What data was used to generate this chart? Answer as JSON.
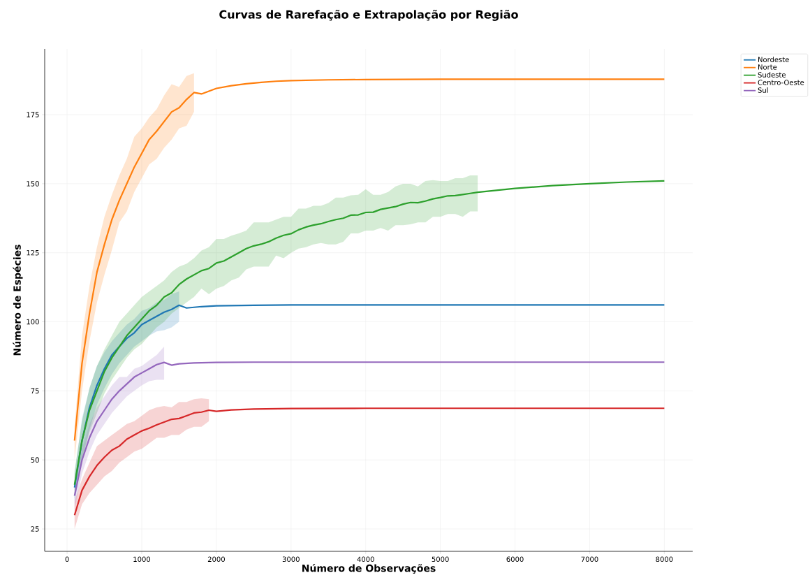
{
  "chart_data": {
    "type": "line",
    "title": "Curvas de Rarefação e Extrapolação por Região",
    "xlabel": "Número de Observações",
    "ylabel": "Número de Espécies",
    "xlim": [
      -300,
      8380
    ],
    "ylim": [
      16.9,
      198.8
    ],
    "xticks": [
      0,
      1000,
      2000,
      3000,
      4000,
      5000,
      6000,
      7000,
      8000
    ],
    "yticks": [
      25,
      50,
      75,
      100,
      125,
      150,
      175
    ],
    "grid": true,
    "legend": "top right",
    "series": [
      {
        "name": "Nordeste",
        "color": "#1f77b4",
        "x": [
          100,
          200,
          300,
          400,
          500,
          600,
          700,
          800,
          900,
          1000,
          1100,
          1200,
          1300,
          1400,
          1500,
          1600,
          1800,
          2000,
          2500,
          3000,
          4000,
          5000,
          6000,
          7000,
          8000
        ],
        "values": [
          40,
          57,
          69,
          77,
          83,
          88,
          91,
          94,
          96,
          99,
          100.5,
          102,
          103.5,
          104.5,
          106,
          105,
          105.5,
          105.8,
          106,
          106.1,
          106.1,
          106.1,
          106.1,
          106.1,
          106.1
        ],
        "upper": [
          45,
          65,
          76,
          84,
          89,
          93,
          96,
          99,
          101,
          104,
          105,
          107,
          108,
          110,
          111,
          null,
          null,
          null,
          null,
          null,
          null,
          null,
          null,
          null,
          null
        ],
        "lower": [
          35,
          50,
          61,
          70,
          76,
          81,
          85,
          88,
          91,
          93,
          95,
          96.5,
          97,
          98,
          100,
          null,
          null,
          null,
          null,
          null,
          null,
          null,
          null,
          null,
          null
        ]
      },
      {
        "name": "Norte",
        "color": "#ff7f0e",
        "x": [
          100,
          200,
          300,
          400,
          500,
          600,
          700,
          800,
          900,
          1000,
          1100,
          1200,
          1300,
          1400,
          1500,
          1600,
          1700,
          1800,
          1900,
          2000,
          2200,
          2400,
          2600,
          2800,
          3000,
          3500,
          4000,
          5000,
          6000,
          7000,
          8000
        ],
        "values": [
          57,
          85,
          103,
          118,
          128,
          137,
          144,
          150,
          156,
          161,
          166,
          169,
          172.5,
          176,
          177.5,
          180.5,
          183,
          182.5,
          183.5,
          184.5,
          185.5,
          186.2,
          186.7,
          187.1,
          187.3,
          187.6,
          187.7,
          187.8,
          187.8,
          187.8,
          187.8
        ],
        "upper": [
          62,
          95,
          113,
          127,
          138,
          146,
          153,
          159,
          167,
          170,
          174,
          177,
          182,
          186,
          185,
          189,
          190,
          null,
          null,
          null,
          null,
          null,
          null,
          null,
          null,
          null,
          null,
          null,
          null,
          null,
          null
        ],
        "lower": [
          50,
          75,
          93,
          107,
          117,
          126,
          136,
          140,
          147,
          152,
          157,
          159,
          163,
          166,
          170,
          171,
          176,
          null,
          null,
          null,
          null,
          null,
          null,
          null,
          null,
          null,
          null,
          null,
          null,
          null,
          null
        ]
      },
      {
        "name": "Sudeste",
        "color": "#2ca02c",
        "x": [
          100,
          200,
          300,
          400,
          500,
          600,
          700,
          800,
          900,
          1000,
          1100,
          1200,
          1300,
          1400,
          1500,
          1600,
          1700,
          1800,
          1900,
          2000,
          2100,
          2200,
          2300,
          2400,
          2500,
          2600,
          2700,
          2800,
          2900,
          3000,
          3100,
          3200,
          3300,
          3400,
          3500,
          3600,
          3700,
          3800,
          3900,
          4000,
          4100,
          4200,
          4300,
          4400,
          4500,
          4600,
          4700,
          4800,
          4900,
          5000,
          5100,
          5200,
          5300,
          5400,
          5500,
          6000,
          6500,
          7000,
          7500,
          8000
        ],
        "values": [
          41,
          57,
          68,
          75,
          82,
          87,
          91,
          95,
          98,
          101,
          104,
          106,
          109,
          110.5,
          113.5,
          115.5,
          117,
          118.5,
          119.3,
          121.3,
          122,
          123.5,
          125,
          126.5,
          127.5,
          128.1,
          129,
          130.3,
          131.3,
          131.9,
          133.3,
          134.3,
          135,
          135.5,
          136.3,
          137,
          137.5,
          138.6,
          138.7,
          139.6,
          139.7,
          140.7,
          141.2,
          141.7,
          142.6,
          143.2,
          143.1,
          143.7,
          144.5,
          145,
          145.6,
          145.7,
          146.1,
          146.5,
          146.9,
          148.3,
          149.3,
          150,
          150.6,
          151
        ],
        "upper": [
          46,
          64,
          76,
          84,
          90,
          95,
          100,
          103,
          106,
          109,
          111,
          113,
          115,
          118,
          120,
          121,
          123,
          125.8,
          127,
          130,
          130,
          131.2,
          132,
          133,
          136,
          136,
          136,
          137,
          138,
          138,
          141,
          141,
          142,
          142,
          143,
          145,
          145,
          145.8,
          146,
          148,
          146,
          146,
          147,
          149,
          150,
          150,
          149,
          151,
          151.3,
          151,
          151,
          152,
          152,
          153,
          153,
          null,
          null,
          null,
          null,
          null
        ],
        "lower": [
          36,
          50,
          60,
          67,
          74,
          79,
          83,
          87,
          90,
          92,
          95,
          98,
          100,
          103,
          105,
          107,
          109,
          112,
          110,
          112,
          113,
          115,
          116,
          119,
          120,
          120,
          120,
          124,
          123,
          125,
          126.5,
          127,
          128,
          128.5,
          128,
          128,
          129,
          132,
          132,
          133,
          133,
          134,
          133,
          135,
          135,
          135.3,
          136,
          136,
          138,
          138,
          139,
          139,
          138,
          140,
          140,
          null,
          null,
          null,
          null,
          null
        ]
      },
      {
        "name": "Centro-Oeste",
        "color": "#d62728",
        "x": [
          100,
          200,
          300,
          400,
          500,
          600,
          700,
          800,
          900,
          1000,
          1100,
          1200,
          1300,
          1400,
          1500,
          1600,
          1700,
          1800,
          1900,
          2000,
          2200,
          2500,
          3000,
          4000,
          5000,
          6000,
          7000,
          8000
        ],
        "values": [
          30,
          39,
          44,
          48,
          51,
          53.5,
          55,
          57.5,
          59,
          60.5,
          61.5,
          62.7,
          63.7,
          64.7,
          65,
          66,
          67,
          67.3,
          68,
          67.6,
          68.1,
          68.4,
          68.6,
          68.7,
          68.7,
          68.7,
          68.7,
          68.7
        ],
        "upper": [
          35,
          43,
          49,
          55,
          57,
          59,
          61,
          63,
          64,
          66,
          68,
          69,
          69.5,
          69,
          71,
          71,
          72,
          72.3,
          72,
          null,
          null,
          null,
          null,
          null,
          null,
          null,
          null,
          null
        ],
        "lower": [
          25,
          34,
          38,
          41,
          44,
          46,
          49,
          51,
          53,
          54,
          56,
          58,
          58,
          59,
          59,
          61,
          62,
          62,
          64,
          null,
          null,
          null,
          null,
          null,
          null,
          null,
          null,
          null
        ]
      },
      {
        "name": "Sul",
        "color": "#9467bd",
        "x": [
          100,
          200,
          300,
          400,
          500,
          600,
          700,
          800,
          900,
          1000,
          1100,
          1200,
          1300,
          1400,
          1500,
          1700,
          2000,
          2500,
          3000,
          4000,
          5000,
          6000,
          7000,
          8000
        ],
        "values": [
          37,
          50,
          58,
          64,
          68,
          72,
          75,
          77.5,
          80,
          81.5,
          83,
          84.5,
          85.3,
          84.3,
          84.8,
          85.1,
          85.3,
          85.4,
          85.4,
          85.4,
          85.4,
          85.4,
          85.4,
          85.4
        ],
        "upper": [
          40,
          54,
          63,
          69,
          73,
          77,
          80,
          80,
          83,
          84,
          86,
          88,
          91,
          null,
          null,
          null,
          null,
          null,
          null,
          null,
          null,
          null,
          null,
          null
        ],
        "lower": [
          32,
          45,
          53,
          59,
          63,
          67,
          70,
          73,
          75,
          77,
          78.5,
          79,
          79,
          null,
          null,
          null,
          null,
          null,
          null,
          null,
          null,
          null,
          null,
          null
        ]
      }
    ]
  }
}
